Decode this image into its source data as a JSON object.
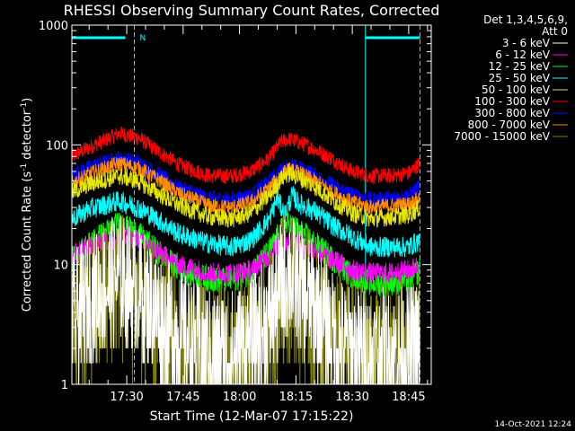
{
  "chart_data": {
    "type": "line",
    "title": "RHESSI Observing Summary Count Rates, Corrected",
    "xlabel": "Start Time (12-Mar-07 17:15:22)",
    "ylabel": "Corrected Count Rate (s",
    "ylabel_sup1": "-1",
    "ylabel_mid": " detector",
    "ylabel_sup2": "-1",
    "ylabel_end": ")",
    "yscale": "log",
    "ylim": [
      1,
      1000
    ],
    "xlim_minutes": [
      15.4,
      74.1
    ],
    "y_ticks": [
      {
        "value": 1,
        "label": "1"
      },
      {
        "value": 10,
        "label": "10"
      },
      {
        "value": 100,
        "label": "100"
      },
      {
        "value": 1000,
        "label": "1000"
      }
    ],
    "x_ticks": [
      {
        "minute": 30,
        "label": "17:30"
      },
      {
        "minute": 45,
        "label": "17:45"
      },
      {
        "minute": 60,
        "label": "18:00"
      },
      {
        "minute": 75,
        "label": "18:15"
      },
      {
        "minute": 90,
        "label": "18:30"
      },
      {
        "minute": 105,
        "label": "18:45"
      }
    ],
    "legend": {
      "placement": "right",
      "header1": "Det 1,3,4,5,6,9,",
      "header2": "Att 0",
      "entries": [
        {
          "label": "3 - 6 keV",
          "color": "#ffffff"
        },
        {
          "label": "6 - 12 keV",
          "color": "#ff00ff"
        },
        {
          "label": "12 - 25 keV",
          "color": "#00ff00"
        },
        {
          "label": "25 - 50 keV",
          "color": "#00ffff"
        },
        {
          "label": "50 - 100 keV",
          "color": "#e6e600"
        },
        {
          "label": "100 - 300 keV",
          "color": "#ff0000"
        },
        {
          "label": "300 - 800 keV",
          "color": "#0000ff"
        },
        {
          "label": "800 - 7000 keV",
          "color": "#ff8c00"
        },
        {
          "label": "7000 - 15000 keV",
          "color": "#808000"
        }
      ]
    },
    "series": [
      {
        "name": "100 - 300 keV",
        "color": "#ff0000",
        "noise": 0.03,
        "x": [
          15.4,
          20,
          28,
          33,
          38,
          44,
          52,
          58,
          63,
          68,
          71,
          73,
          76,
          80,
          85,
          90,
          95,
          100,
          105,
          108
        ],
        "y": [
          80,
          95,
          125,
          115,
          90,
          68,
          55,
          55,
          60,
          78,
          105,
          112,
          105,
          92,
          75,
          60,
          55,
          55,
          58,
          70
        ]
      },
      {
        "name": "300 - 800 keV",
        "color": "#0000ff",
        "noise": 0.03,
        "x": [
          15.4,
          20,
          28,
          33,
          38,
          44,
          52,
          58,
          63,
          68,
          71,
          73,
          76,
          80,
          85,
          90,
          95,
          100,
          105,
          108
        ],
        "y": [
          55,
          65,
          78,
          72,
          58,
          44,
          36,
          35,
          38,
          50,
          62,
          68,
          64,
          56,
          46,
          38,
          35,
          36,
          38,
          45
        ]
      },
      {
        "name": "800 - 7000 keV",
        "color": "#ff8c00",
        "noise": 0.03,
        "x": [
          15.4,
          20,
          28,
          33,
          38,
          44,
          52,
          58,
          63,
          68,
          71,
          73,
          76,
          80,
          85,
          90,
          95,
          100,
          105,
          108
        ],
        "y": [
          48,
          57,
          70,
          64,
          52,
          39,
          31,
          30,
          33,
          44,
          56,
          62,
          58,
          50,
          40,
          33,
          30,
          31,
          32,
          36
        ]
      },
      {
        "name": "50 - 100 keV",
        "color": "#e6e600",
        "noise": 0.035,
        "x": [
          15.4,
          20,
          28,
          33,
          38,
          44,
          52,
          58,
          63,
          68,
          71,
          73,
          76,
          80,
          85,
          90,
          95,
          100,
          105,
          108
        ],
        "y": [
          40,
          47,
          55,
          50,
          40,
          31,
          25,
          24,
          27,
          38,
          52,
          58,
          53,
          45,
          34,
          27,
          24,
          25,
          26,
          30
        ]
      },
      {
        "name": "25 - 50 keV",
        "color": "#00ffff",
        "noise": 0.04,
        "x": [
          15.4,
          20,
          28,
          33,
          38,
          44,
          52,
          58,
          63,
          68,
          70,
          72,
          74,
          76,
          80,
          85,
          90,
          95,
          100,
          105,
          108
        ],
        "y": [
          24,
          29,
          34,
          30,
          24,
          18,
          15,
          14,
          16,
          24,
          36,
          26,
          38,
          32,
          28,
          21,
          17,
          14,
          14,
          14,
          16
        ]
      },
      {
        "name": "12 - 25 keV",
        "color": "#00ff00",
        "noise": 0.05,
        "x": [
          15.4,
          20,
          28,
          33,
          38,
          44,
          52,
          58,
          63,
          68,
          71,
          73,
          76,
          80,
          85,
          90,
          95,
          100,
          105,
          108
        ],
        "y": [
          11,
          15,
          22,
          18,
          13,
          9,
          7.5,
          7.5,
          8.5,
          13,
          19,
          22,
          19,
          15,
          11,
          8,
          7,
          7,
          7.5,
          9
        ]
      },
      {
        "name": "6 - 12 keV",
        "color": "#ff00ff",
        "noise": 0.04,
        "x": [
          15.4,
          20,
          28,
          33,
          38,
          44,
          52,
          58,
          63,
          68,
          71,
          73,
          76,
          80,
          85,
          90,
          95,
          100,
          105,
          108
        ],
        "y": [
          12,
          14,
          17,
          16,
          13,
          10,
          8.5,
          8.5,
          9,
          12,
          15,
          16,
          15,
          13,
          11,
          9,
          8.5,
          8.5,
          9,
          10
        ]
      },
      {
        "name": "7000 - 15000 keV",
        "color": "#808000",
        "noise": 0.3,
        "x": [
          15.4,
          20,
          28,
          33,
          38,
          44,
          52,
          58,
          63,
          68,
          71,
          73,
          76,
          80,
          85,
          90,
          95,
          100,
          105,
          108
        ],
        "y": [
          2.5,
          4,
          7,
          5,
          3,
          2,
          1.6,
          1.6,
          1.8,
          3,
          5.5,
          7,
          5.5,
          3.5,
          2.2,
          1.7,
          1.6,
          1.6,
          1.7,
          2
        ]
      },
      {
        "name": "3 - 6 keV",
        "color": "#ffffff",
        "noise": 0.25,
        "x": [
          15.4,
          20,
          28,
          33,
          38,
          44,
          52,
          58,
          63,
          68,
          71,
          73,
          76,
          80,
          85,
          90,
          95,
          100,
          105,
          108
        ],
        "y": [
          3.5,
          5,
          8,
          6,
          4,
          2.5,
          1.8,
          1.8,
          2.2,
          3.5,
          6.5,
          8.5,
          6.5,
          4.5,
          2.5,
          1.9,
          1.8,
          1.8,
          1.9,
          2.2
        ]
      }
    ],
    "attenuator_bars": [
      {
        "x_start": 15.4,
        "x_end": 32.0,
        "label": "N"
      },
      {
        "x_start": 93.5,
        "x_end": 108.0,
        "label": ""
      }
    ],
    "vlines_solid": [
      15.4,
      93.5
    ],
    "vlines_dashed": [
      32.0,
      108.0
    ]
  },
  "footer": {
    "timestamp": "14-Oct-2021 12:24"
  }
}
